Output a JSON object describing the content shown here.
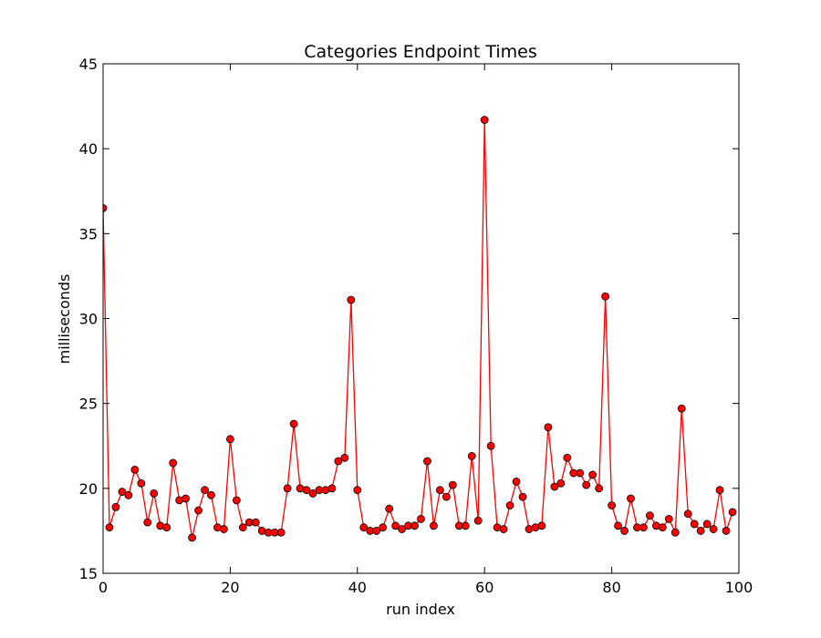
{
  "chart_data": {
    "type": "line",
    "title": "Categories Endpoint Times",
    "xlabel": "run index",
    "ylabel": "milliseconds",
    "xlim": [
      0,
      100
    ],
    "ylim": [
      15,
      45
    ],
    "grid": false,
    "line_color": "#ff0000",
    "marker_color": "#ff0000",
    "marker_edge_color": "#000000",
    "x_ticks": [
      0,
      20,
      40,
      60,
      80,
      100
    ],
    "y_ticks": [
      15,
      20,
      25,
      30,
      35,
      40,
      45
    ],
    "series": [
      {
        "x": [
          0,
          1,
          2,
          3,
          4,
          5,
          6,
          7,
          8,
          9,
          10,
          11,
          12,
          13,
          14,
          15,
          16,
          17,
          18,
          19,
          20,
          21,
          22,
          23,
          24,
          25,
          26,
          27,
          28,
          29,
          30,
          31,
          32,
          33,
          34,
          35,
          36,
          37,
          38,
          39,
          40,
          41,
          42,
          43,
          44,
          45,
          46,
          47,
          48,
          49,
          50,
          51,
          52,
          53,
          54,
          55,
          56,
          57,
          58,
          59,
          60,
          61,
          62,
          63,
          64,
          65,
          66,
          67,
          68,
          69,
          70,
          71,
          72,
          73,
          74,
          75,
          76,
          77,
          78,
          79,
          80,
          81,
          82,
          83,
          84,
          85,
          86,
          87,
          88,
          89,
          90,
          91,
          92,
          93,
          94,
          95,
          96,
          97,
          98,
          99
        ],
        "values": [
          36.5,
          17.7,
          18.9,
          19.8,
          19.6,
          21.1,
          20.3,
          18.0,
          19.7,
          17.8,
          17.7,
          21.5,
          19.3,
          19.4,
          17.1,
          18.7,
          19.9,
          19.6,
          17.7,
          17.6,
          22.9,
          19.3,
          17.7,
          18.0,
          18.0,
          17.5,
          17.4,
          17.4,
          17.4,
          20.0,
          23.8,
          20.0,
          19.9,
          19.7,
          19.9,
          19.9,
          20.0,
          21.6,
          21.8,
          31.1,
          19.9,
          17.7,
          17.5,
          17.5,
          17.7,
          18.8,
          17.8,
          17.6,
          17.8,
          17.8,
          18.2,
          21.6,
          17.8,
          19.9,
          19.5,
          20.2,
          17.8,
          17.8,
          21.9,
          18.1,
          41.7,
          22.5,
          17.7,
          17.6,
          19.0,
          20.4,
          19.5,
          17.6,
          17.7,
          17.8,
          23.6,
          20.1,
          20.3,
          21.8,
          20.9,
          20.9,
          20.2,
          20.8,
          20.0,
          31.3,
          19.0,
          17.8,
          17.5,
          19.4,
          17.7,
          17.7,
          18.4,
          17.8,
          17.7,
          18.2,
          17.4,
          24.7,
          18.5,
          17.9,
          17.5,
          17.9,
          17.6,
          19.9,
          17.5,
          18.6
        ]
      }
    ]
  }
}
